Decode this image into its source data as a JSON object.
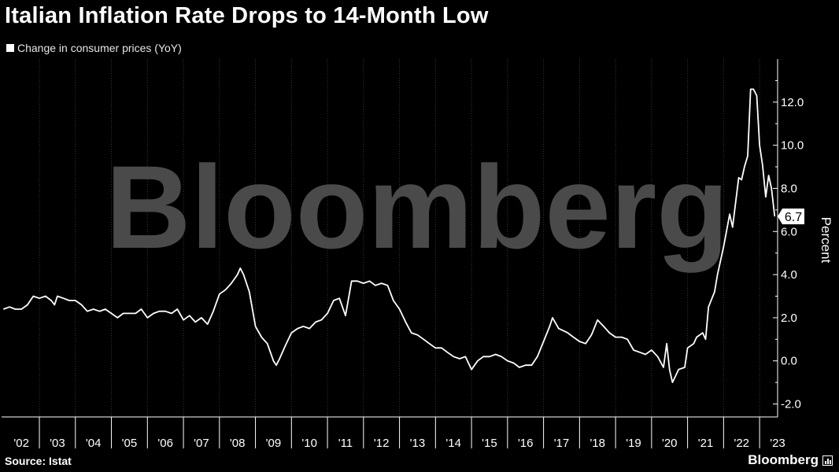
{
  "title": "Italian Inflation Rate Drops to 14-Month Low",
  "legend": {
    "label": "Change in consumer prices (YoY)"
  },
  "source": "Source: Istat",
  "brand": {
    "name": "Bloomberg",
    "watermark": "Bloomberg",
    "icon": "bloomberg-chart-icon"
  },
  "colors": {
    "background": "#000000",
    "line": "#ffffff",
    "grid": "#3a3a3a",
    "text": "#ffffff",
    "watermark": "#4a4a4a"
  },
  "chart_data": {
    "type": "line",
    "title": "Italian Inflation Rate Drops to 14-Month Low",
    "ylabel": "Percent",
    "xlabel": "",
    "y_axis_side": "right",
    "ylim": [
      -2.6,
      14
    ],
    "yticks": [
      -2.0,
      0.0,
      2.0,
      4.0,
      6.0,
      8.0,
      10.0,
      12.0
    ],
    "ytick_labels": [
      "-2.0",
      "0.0",
      "2.0",
      "4.0",
      "6.0",
      "8.0",
      "10.0",
      "12.0"
    ],
    "xlim": [
      2001.95,
      2023.5
    ],
    "xtick_labels": [
      "'02",
      "'03",
      "'04",
      "'05",
      "'06",
      "'07",
      "'08",
      "'09",
      "'10",
      "'11",
      "'12",
      "'13",
      "'14",
      "'15",
      "'16",
      "'17",
      "'18",
      "'19",
      "'20",
      "'21",
      "'22",
      "'23"
    ],
    "xtick_years": [
      2002,
      2003,
      2004,
      2005,
      2006,
      2007,
      2008,
      2009,
      2010,
      2011,
      2012,
      2013,
      2014,
      2015,
      2016,
      2017,
      2018,
      2019,
      2020,
      2021,
      2022,
      2023
    ],
    "grid": "vertical",
    "last_value_label": "6.7",
    "series": [
      {
        "name": "Change in consumer prices (YoY)",
        "points": [
          [
            2002.0,
            2.4
          ],
          [
            2002.17,
            2.5
          ],
          [
            2002.33,
            2.4
          ],
          [
            2002.5,
            2.4
          ],
          [
            2002.67,
            2.6
          ],
          [
            2002.83,
            3.0
          ],
          [
            2003.0,
            2.9
          ],
          [
            2003.17,
            3.0
          ],
          [
            2003.33,
            2.8
          ],
          [
            2003.42,
            2.6
          ],
          [
            2003.5,
            3.0
          ],
          [
            2003.67,
            2.9
          ],
          [
            2003.83,
            2.8
          ],
          [
            2004.0,
            2.8
          ],
          [
            2004.17,
            2.6
          ],
          [
            2004.33,
            2.3
          ],
          [
            2004.5,
            2.4
          ],
          [
            2004.67,
            2.3
          ],
          [
            2004.83,
            2.4
          ],
          [
            2005.0,
            2.2
          ],
          [
            2005.17,
            2.0
          ],
          [
            2005.33,
            2.2
          ],
          [
            2005.5,
            2.2
          ],
          [
            2005.67,
            2.2
          ],
          [
            2005.83,
            2.4
          ],
          [
            2006.0,
            2.0
          ],
          [
            2006.17,
            2.2
          ],
          [
            2006.33,
            2.3
          ],
          [
            2006.5,
            2.3
          ],
          [
            2006.67,
            2.2
          ],
          [
            2006.83,
            2.4
          ],
          [
            2007.0,
            1.9
          ],
          [
            2007.17,
            2.1
          ],
          [
            2007.33,
            1.8
          ],
          [
            2007.5,
            2.0
          ],
          [
            2007.67,
            1.7
          ],
          [
            2007.83,
            2.3
          ],
          [
            2008.0,
            3.1
          ],
          [
            2008.17,
            3.3
          ],
          [
            2008.33,
            3.6
          ],
          [
            2008.5,
            4.0
          ],
          [
            2008.58,
            4.3
          ],
          [
            2008.67,
            4.0
          ],
          [
            2008.83,
            3.2
          ],
          [
            2009.0,
            1.6
          ],
          [
            2009.17,
            1.1
          ],
          [
            2009.33,
            0.8
          ],
          [
            2009.5,
            0.0
          ],
          [
            2009.58,
            -0.2
          ],
          [
            2009.67,
            0.1
          ],
          [
            2009.83,
            0.7
          ],
          [
            2010.0,
            1.3
          ],
          [
            2010.17,
            1.5
          ],
          [
            2010.33,
            1.6
          ],
          [
            2010.5,
            1.5
          ],
          [
            2010.67,
            1.8
          ],
          [
            2010.83,
            1.9
          ],
          [
            2011.0,
            2.2
          ],
          [
            2011.17,
            2.8
          ],
          [
            2011.33,
            2.9
          ],
          [
            2011.5,
            2.1
          ],
          [
            2011.67,
            3.7
          ],
          [
            2011.83,
            3.7
          ],
          [
            2012.0,
            3.6
          ],
          [
            2012.17,
            3.7
          ],
          [
            2012.33,
            3.5
          ],
          [
            2012.5,
            3.6
          ],
          [
            2012.67,
            3.5
          ],
          [
            2012.83,
            2.8
          ],
          [
            2013.0,
            2.4
          ],
          [
            2013.17,
            1.8
          ],
          [
            2013.33,
            1.3
          ],
          [
            2013.5,
            1.2
          ],
          [
            2013.67,
            1.0
          ],
          [
            2013.83,
            0.8
          ],
          [
            2014.0,
            0.6
          ],
          [
            2014.17,
            0.6
          ],
          [
            2014.33,
            0.4
          ],
          [
            2014.5,
            0.2
          ],
          [
            2014.67,
            0.1
          ],
          [
            2014.83,
            0.2
          ],
          [
            2015.0,
            -0.4
          ],
          [
            2015.17,
            0.0
          ],
          [
            2015.33,
            0.2
          ],
          [
            2015.5,
            0.2
          ],
          [
            2015.67,
            0.3
          ],
          [
            2015.83,
            0.2
          ],
          [
            2016.0,
            0.0
          ],
          [
            2016.17,
            -0.1
          ],
          [
            2016.33,
            -0.3
          ],
          [
            2016.5,
            -0.2
          ],
          [
            2016.67,
            -0.2
          ],
          [
            2016.83,
            0.2
          ],
          [
            2017.0,
            0.9
          ],
          [
            2017.17,
            1.6
          ],
          [
            2017.25,
            2.0
          ],
          [
            2017.42,
            1.5
          ],
          [
            2017.67,
            1.3
          ],
          [
            2017.83,
            1.1
          ],
          [
            2018.0,
            0.9
          ],
          [
            2018.17,
            0.8
          ],
          [
            2018.33,
            1.2
          ],
          [
            2018.5,
            1.9
          ],
          [
            2018.67,
            1.6
          ],
          [
            2018.83,
            1.3
          ],
          [
            2019.0,
            1.1
          ],
          [
            2019.17,
            1.1
          ],
          [
            2019.33,
            1.0
          ],
          [
            2019.5,
            0.5
          ],
          [
            2019.67,
            0.4
          ],
          [
            2019.83,
            0.3
          ],
          [
            2020.0,
            0.5
          ],
          [
            2020.17,
            0.2
          ],
          [
            2020.33,
            -0.3
          ],
          [
            2020.42,
            0.8
          ],
          [
            2020.5,
            -0.4
          ],
          [
            2020.58,
            -1.0
          ],
          [
            2020.75,
            -0.4
          ],
          [
            2020.92,
            -0.3
          ],
          [
            2021.0,
            0.6
          ],
          [
            2021.17,
            0.8
          ],
          [
            2021.25,
            1.1
          ],
          [
            2021.42,
            1.3
          ],
          [
            2021.5,
            1.0
          ],
          [
            2021.58,
            2.5
          ],
          [
            2021.75,
            3.2
          ],
          [
            2021.83,
            4.0
          ],
          [
            2022.0,
            5.3
          ],
          [
            2022.08,
            6.0
          ],
          [
            2022.17,
            6.8
          ],
          [
            2022.25,
            6.2
          ],
          [
            2022.33,
            7.3
          ],
          [
            2022.42,
            8.5
          ],
          [
            2022.5,
            8.4
          ],
          [
            2022.58,
            9.0
          ],
          [
            2022.67,
            9.5
          ],
          [
            2022.75,
            12.6
          ],
          [
            2022.83,
            12.6
          ],
          [
            2022.92,
            12.3
          ],
          [
            2023.0,
            10.0
          ],
          [
            2023.08,
            9.1
          ],
          [
            2023.17,
            7.6
          ],
          [
            2023.25,
            8.6
          ],
          [
            2023.33,
            8.0
          ],
          [
            2023.42,
            6.7
          ]
        ]
      }
    ]
  }
}
